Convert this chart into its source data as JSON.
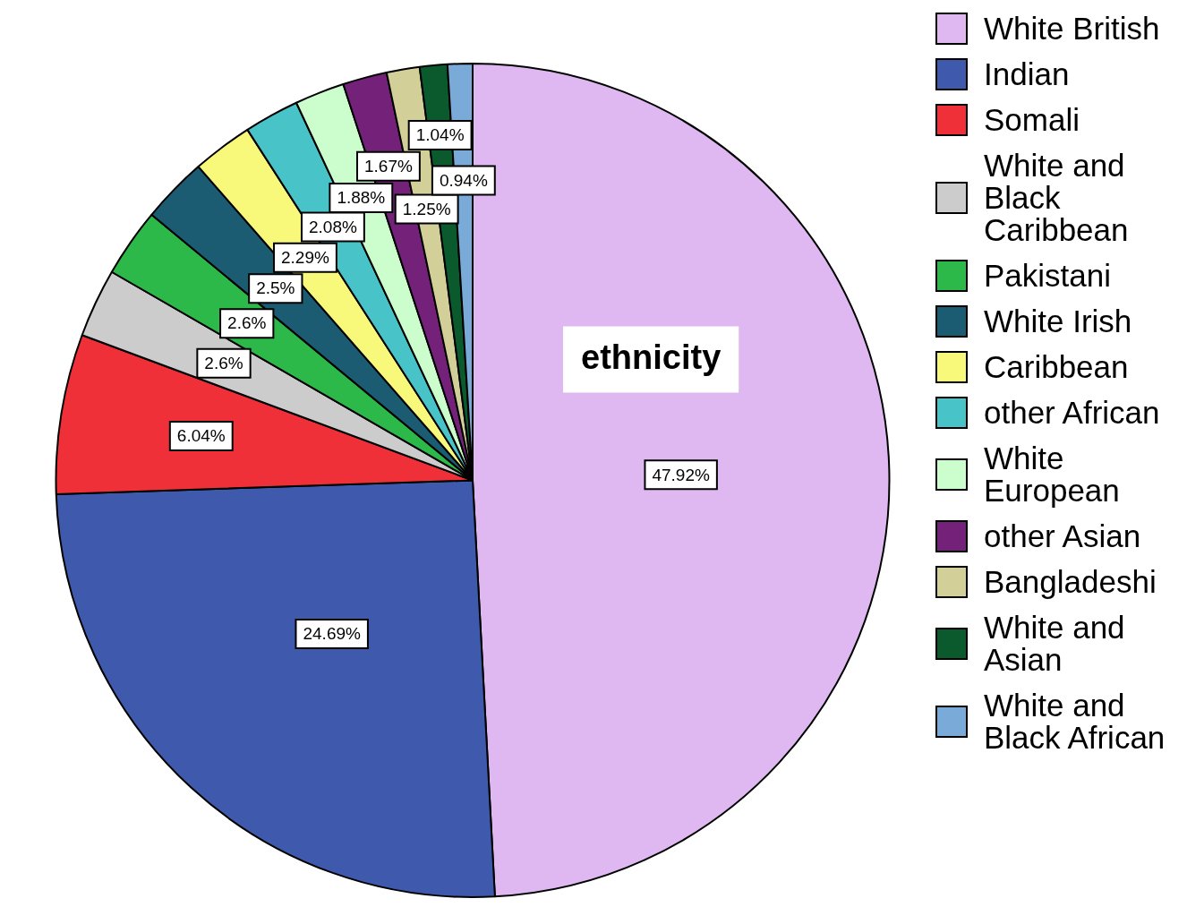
{
  "chart_data": {
    "type": "pie",
    "title": "ethnicity",
    "categories": [
      "White British",
      "Indian",
      "Somali",
      "White and Black Caribbean",
      "Pakistani",
      "White Irish",
      "Caribbean",
      "other African",
      "White European",
      "other Asian",
      "Bangladeshi",
      "White and Asian",
      "White and Black African"
    ],
    "values": [
      47.92,
      24.69,
      6.04,
      2.6,
      2.6,
      2.5,
      2.29,
      2.08,
      1.88,
      1.67,
      1.25,
      1.04,
      0.94
    ],
    "colors": [
      "#dfb8f2",
      "#3f5aad",
      "#ef3038",
      "#cccccc",
      "#2db84a",
      "#1b5c73",
      "#f8f97a",
      "#48c4c8",
      "#ccfdcc",
      "#74217a",
      "#d3cf98",
      "#0b5a2e",
      "#7aaad8"
    ],
    "value_labels": [
      "47.92%",
      "24.69%",
      "6.04%",
      "2.6%",
      "2.6%",
      "2.5%",
      "2.29%",
      "2.08%",
      "1.88%",
      "1.67%",
      "1.25%",
      "1.04%",
      "0.94%"
    ],
    "legend": "right"
  }
}
